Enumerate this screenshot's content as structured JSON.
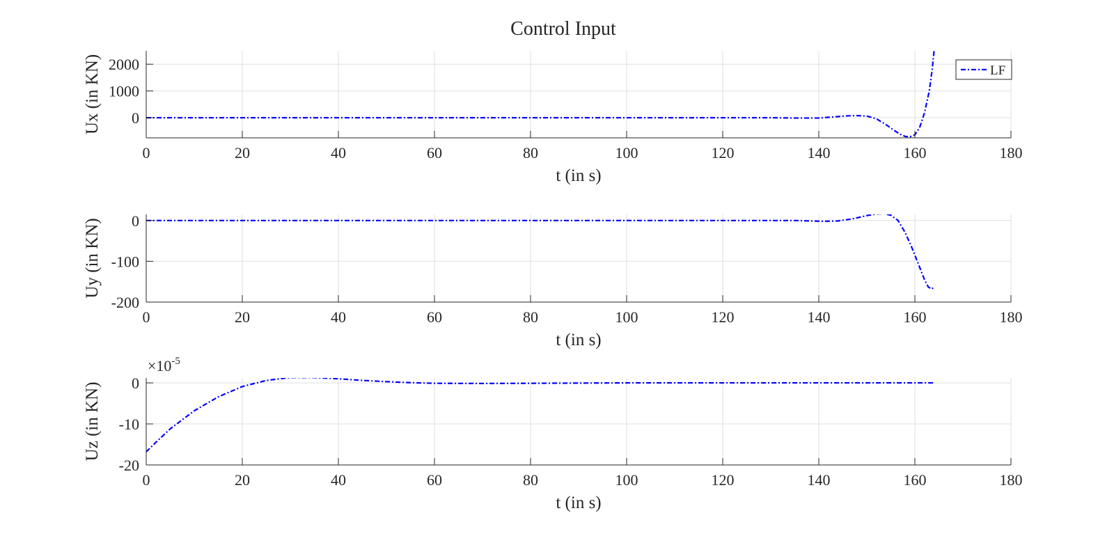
{
  "figure_title": "Control Input",
  "chart_data": [
    {
      "type": "line",
      "id": "ux",
      "title": "Control Input",
      "xlabel": "t (in s)",
      "ylabel": "Ux (in KN)",
      "xlim": [
        0,
        180
      ],
      "ylim": [
        -750,
        2500
      ],
      "xticks": [
        0,
        20,
        40,
        60,
        80,
        100,
        120,
        140,
        160,
        180
      ],
      "yticks": [
        0,
        1000,
        2000
      ],
      "grid": true,
      "legend": {
        "position": "top-right",
        "entries": [
          "LF"
        ]
      },
      "line_color": "#0000ff",
      "series": [
        {
          "name": "LF",
          "x": [
            0,
            20,
            40,
            60,
            80,
            100,
            120,
            130,
            135,
            140,
            143,
            146,
            148,
            150,
            152,
            154,
            156,
            157,
            158,
            159,
            160,
            161,
            162,
            163,
            163.6,
            164
          ],
          "y": [
            0,
            0,
            0,
            0,
            0,
            0,
            0,
            0,
            -10,
            -10,
            30,
            70,
            80,
            60,
            -40,
            -260,
            -510,
            -620,
            -700,
            -710,
            -640,
            -360,
            180,
            1000,
            1800,
            2500
          ]
        }
      ]
    },
    {
      "type": "line",
      "id": "uy",
      "xlabel": "t (in s)",
      "ylabel": "Uy (in KN)",
      "xlim": [
        0,
        180
      ],
      "ylim": [
        -200,
        15
      ],
      "xticks": [
        0,
        20,
        40,
        60,
        80,
        100,
        120,
        140,
        160,
        180
      ],
      "yticks": [
        0,
        -100,
        -200
      ],
      "grid": true,
      "line_color": "#0000ff",
      "series": [
        {
          "x": [
            0,
            20,
            40,
            60,
            80,
            100,
            120,
            135,
            138,
            141,
            144,
            147,
            150,
            152,
            153.5,
            155,
            156.5,
            158,
            159.5,
            161,
            162,
            162.8,
            163.5,
            164
          ],
          "y": [
            0,
            0,
            0,
            0,
            0,
            0,
            0,
            0,
            -1,
            -2,
            -1,
            4,
            12,
            16,
            17,
            13,
            0,
            -30,
            -70,
            -115,
            -145,
            -163,
            -168,
            -163
          ]
        }
      ]
    },
    {
      "type": "line",
      "id": "uz",
      "xlabel": "t (in s)",
      "ylabel": "Uz (in KN)",
      "xlim": [
        0,
        180
      ],
      "ylim": [
        -20,
        1.2
      ],
      "xticks": [
        0,
        20,
        40,
        60,
        80,
        100,
        120,
        140,
        160,
        180
      ],
      "yticks": [
        0,
        -10,
        -20
      ],
      "y_multiplier": "10",
      "y_multiplier_exponent": "-5",
      "grid": true,
      "line_color": "#0000ff",
      "series": [
        {
          "x": [
            0,
            2,
            5,
            10,
            15,
            20,
            25,
            30,
            35,
            40,
            45,
            50,
            55,
            60,
            70,
            80,
            100,
            120,
            140,
            160,
            164
          ],
          "y": [
            -16.8,
            -14.5,
            -11.2,
            -6.8,
            -3.4,
            -0.9,
            0.6,
            1.3,
            1.3,
            1.0,
            0.6,
            0.3,
            0.05,
            -0.1,
            -0.15,
            -0.1,
            0,
            0,
            0,
            0,
            0
          ]
        }
      ]
    }
  ]
}
